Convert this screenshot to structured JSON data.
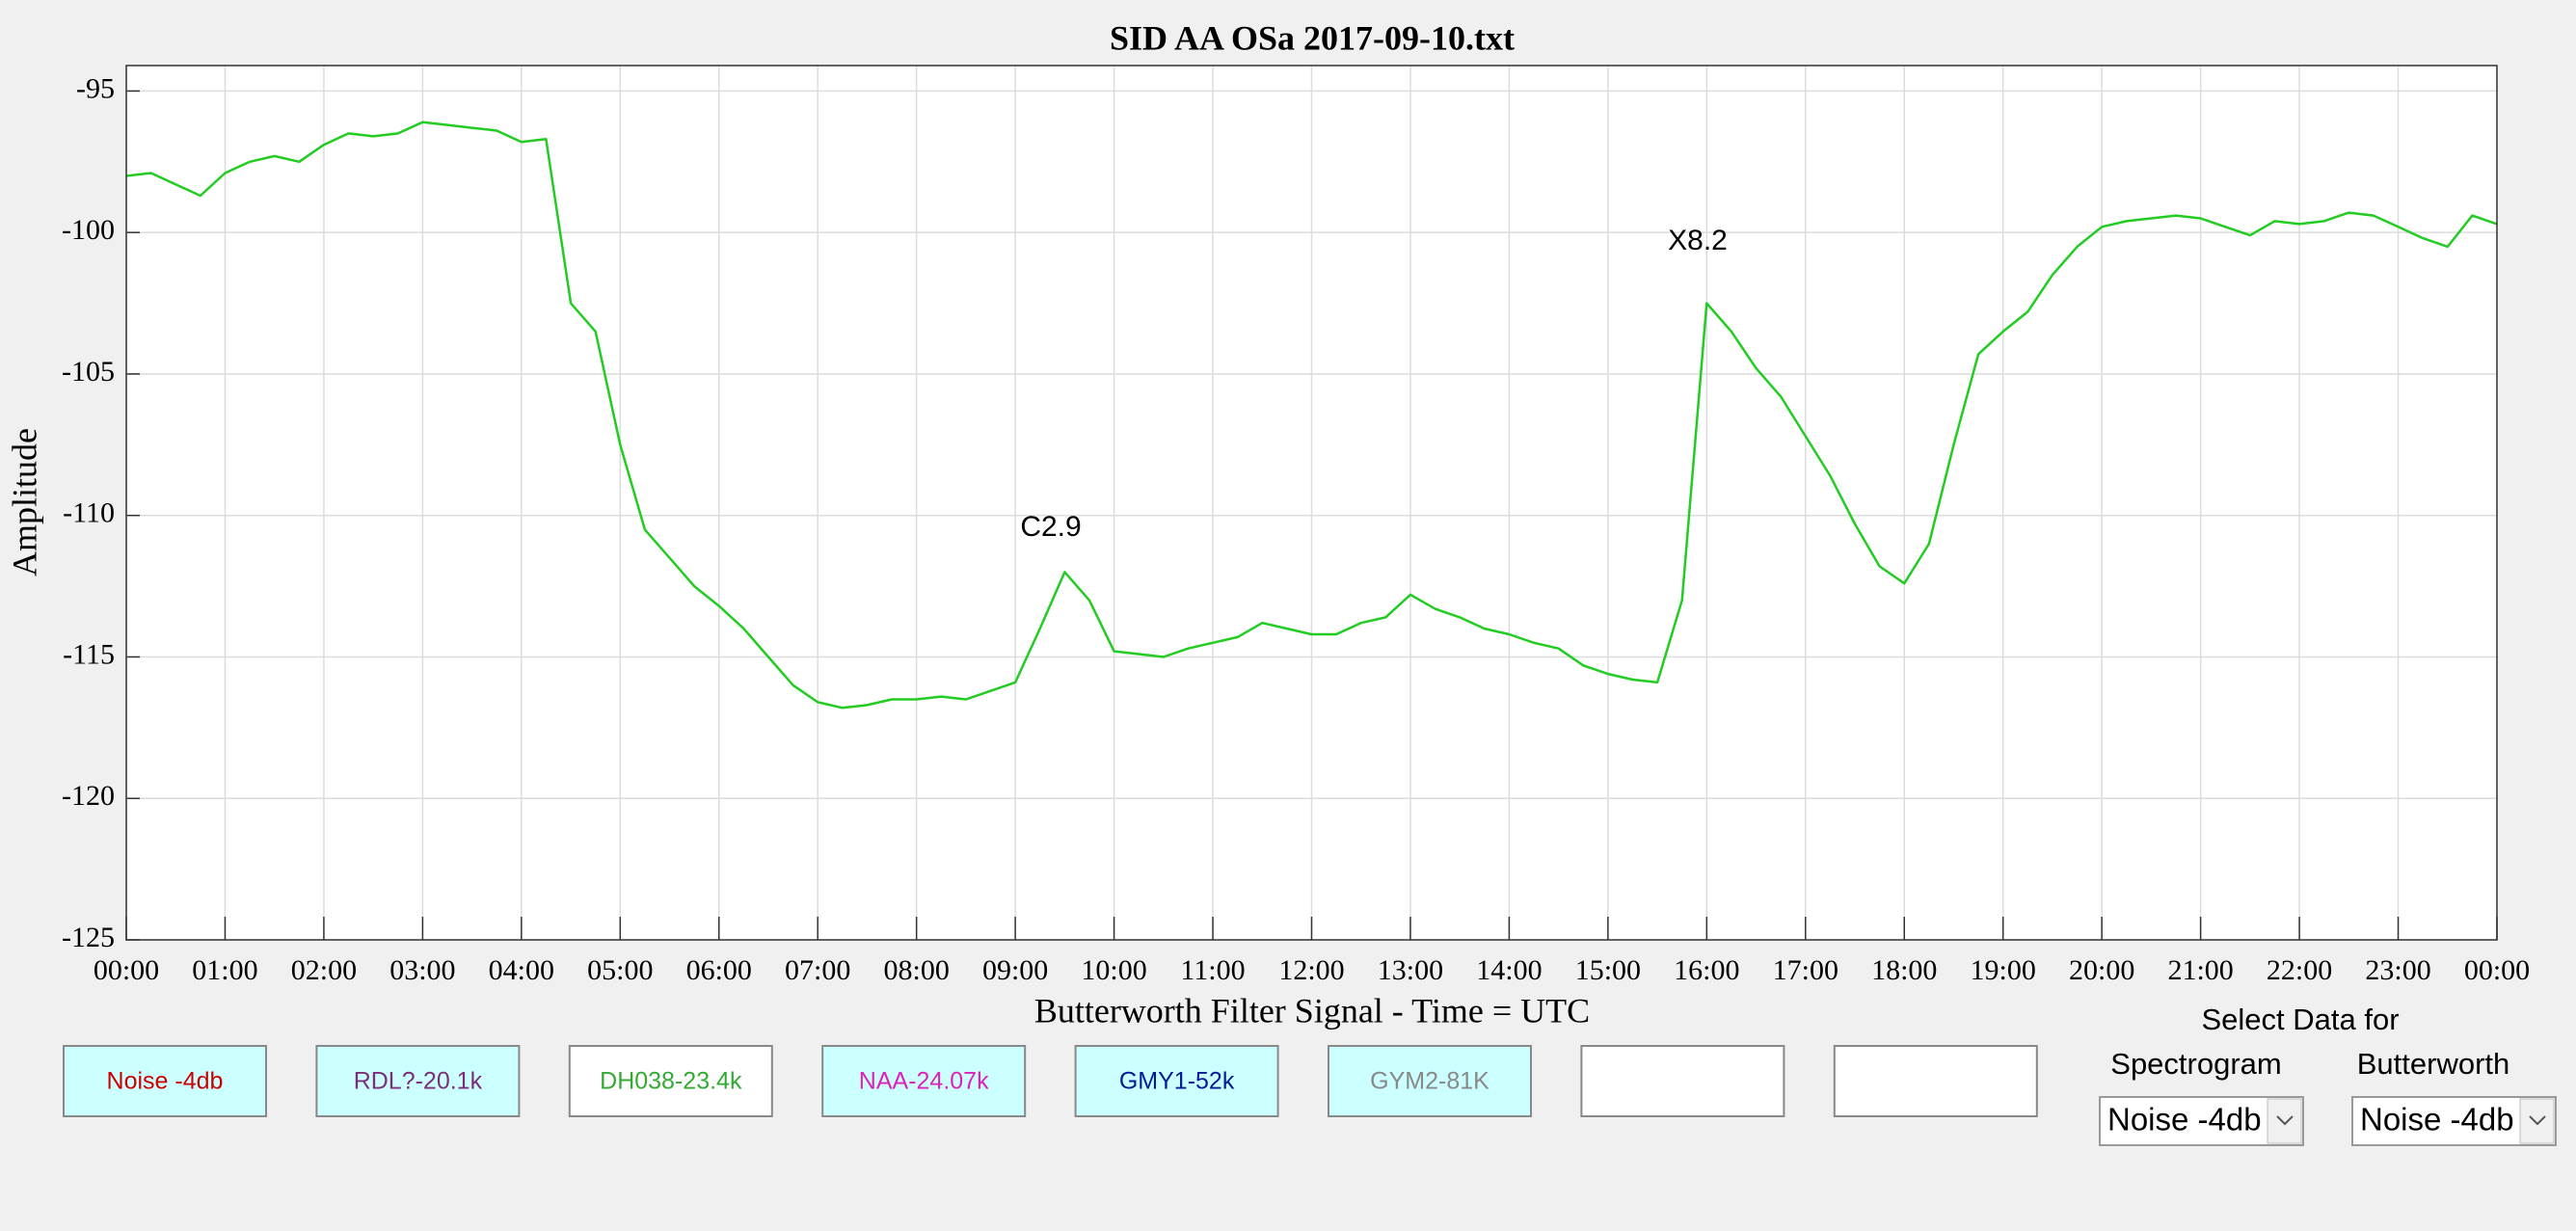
{
  "chart_data": {
    "type": "line",
    "title": "SID AA OSa 2017-09-10.txt",
    "x_label": "Butterworth Filter Signal - Time = UTC",
    "y_label": "Amplitude",
    "color": "#22cc22",
    "grid": true,
    "annotations": [
      "C2.9",
      "X8.2"
    ],
    "xlim": [
      0,
      24
    ],
    "xticks": [
      {
        "value": 0,
        "label": "00:00"
      },
      {
        "value": 1,
        "label": "01:00"
      },
      {
        "value": 2,
        "label": "02:00"
      },
      {
        "value": 3,
        "label": "03:00"
      },
      {
        "value": 4,
        "label": "04:00"
      },
      {
        "value": 5,
        "label": "05:00"
      },
      {
        "value": 6,
        "label": "06:00"
      },
      {
        "value": 7,
        "label": "07:00"
      },
      {
        "value": 8,
        "label": "08:00"
      },
      {
        "value": 9,
        "label": "09:00"
      },
      {
        "value": 10,
        "label": "10:00"
      },
      {
        "value": 11,
        "label": "11:00"
      },
      {
        "value": 12,
        "label": "12:00"
      },
      {
        "value": 13,
        "label": "13:00"
      },
      {
        "value": 14,
        "label": "14:00"
      },
      {
        "value": 15,
        "label": "15:00"
      },
      {
        "value": 16,
        "label": "16:00"
      },
      {
        "value": 17,
        "label": "17:00"
      },
      {
        "value": 18,
        "label": "18:00"
      },
      {
        "value": 19,
        "label": "19:00"
      },
      {
        "value": 20,
        "label": "20:00"
      },
      {
        "value": 21,
        "label": "21:00"
      },
      {
        "value": 22,
        "label": "22:00"
      },
      {
        "value": 23,
        "label": "23:00"
      },
      {
        "value": 24,
        "label": "00:00"
      }
    ],
    "ylim": [
      -125,
      -94.1
    ],
    "yticks": [
      -125,
      -120,
      -115,
      -110,
      -105,
      -100,
      -95
    ],
    "x": [
      0,
      0.25,
      0.5,
      0.75,
      1,
      1.25,
      1.5,
      1.75,
      2,
      2.25,
      2.5,
      2.75,
      3,
      3.25,
      3.5,
      3.75,
      4,
      4.25,
      4.5,
      4.75,
      5,
      5.25,
      5.5,
      5.75,
      6,
      6.25,
      6.5,
      6.75,
      7,
      7.25,
      7.5,
      7.75,
      8,
      8.25,
      8.5,
      8.75,
      9,
      9.25,
      9.5,
      9.75,
      10,
      10.25,
      10.5,
      10.75,
      11,
      11.25,
      11.5,
      11.75,
      12,
      12.25,
      12.5,
      12.75,
      13,
      13.25,
      13.5,
      13.75,
      14,
      14.25,
      14.5,
      14.75,
      15,
      15.25,
      15.5,
      15.75,
      16,
      16.25,
      16.5,
      16.75,
      17,
      17.25,
      17.5,
      17.75,
      18,
      18.25,
      18.5,
      18.75,
      19,
      19.25,
      19.5,
      19.75,
      20,
      20.25,
      20.5,
      20.75,
      21,
      21.25,
      21.5,
      21.75,
      22,
      22.25,
      22.5,
      22.75,
      23,
      23.25,
      23.5,
      23.75,
      24
    ],
    "values": [
      -98,
      -97.9,
      -98.3,
      -98.7,
      -97.9,
      -97.5,
      -97.3,
      -97.5,
      -96.9,
      -96.5,
      -96.6,
      -96.5,
      -96.1,
      -96.2,
      -96.3,
      -96.4,
      -96.8,
      -96.7,
      -102.5,
      -103.5,
      -107.5,
      -110.5,
      -111.5,
      -112.5,
      -113.2,
      -114,
      -115,
      -116,
      -116.6,
      -116.8,
      -116.7,
      -116.5,
      -116.5,
      -116.4,
      -116.5,
      -116.2,
      -115.9,
      -114,
      -112,
      -113,
      -114.8,
      -114.9,
      -115,
      -114.7,
      -114.5,
      -114.3,
      -113.8,
      -114,
      -114.2,
      -114.2,
      -113.8,
      -113.6,
      -112.8,
      -113.3,
      -113.6,
      -114,
      -114.2,
      -114.5,
      -114.7,
      -115.3,
      -115.6,
      -115.8,
      -115.9,
      -113,
      -102.5,
      -103.5,
      -104.8,
      -105.8,
      -107.2,
      -108.6,
      -110.3,
      -111.8,
      -112.4,
      -111,
      -107.5,
      -104.3,
      -103.5,
      -102.8,
      -101.5,
      -100.5,
      -99.8,
      -99.6,
      -99.5,
      -99.4,
      -99.5,
      -99.8,
      -100.1,
      -99.6,
      -99.7,
      -99.6,
      -99.3,
      -99.4,
      -99.8,
      -100.2,
      -100.5,
      -99.4,
      -99.7
    ]
  },
  "channels": [
    {
      "label": "Noise -4db",
      "color": "#cc0000",
      "background": "#ccffff"
    },
    {
      "label": "RDL?-20.1k",
      "color": "#7b2f7b",
      "background": "#ccffff"
    },
    {
      "label": "DH038-23.4k",
      "color": "#33aa33",
      "background": "#ffffff"
    },
    {
      "label": "NAA-24.07k",
      "color": "#dd22bb",
      "background": "#ccffff"
    },
    {
      "label": "GMY1-52k",
      "color": "#001a99",
      "background": "#ccffff"
    },
    {
      "label": "GYM2-81K",
      "color": "#888888",
      "background": "#ccffff"
    },
    {
      "background": "#ffffff"
    },
    {
      "background": "#ffffff"
    }
  ],
  "select_panel": {
    "heading": "Select Data for",
    "spectrogram_label": "Spectrogram",
    "butterworth_label": "Butterworth",
    "spectrogram_value": "Noise -4db",
    "butterworth_value": "Noise -4db"
  }
}
